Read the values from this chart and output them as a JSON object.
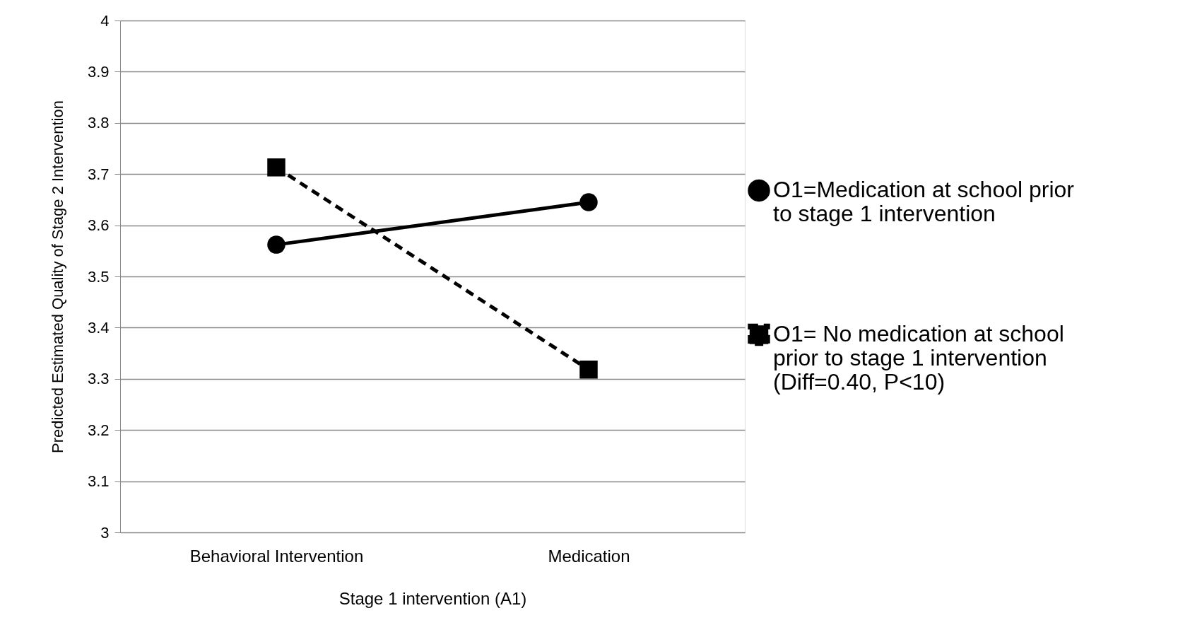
{
  "chart_data": {
    "type": "line",
    "xlabel": "Stage 1 intervention (A1)",
    "ylabel": "Predicted Estimated Quality of Stage 2 Intervention",
    "categories": [
      "Behavioral Intervention",
      "Medication"
    ],
    "series": [
      {
        "name": "O1=Medication at school prior to stage 1 intervention",
        "color": "#000000",
        "values": [
          3.562,
          3.645
        ],
        "marker": "circle",
        "line_style": "solid"
      },
      {
        "name": "O1= No medication at school prior to stage 1 intervention (Diff=0.40, P<10)",
        "color": "#000000",
        "values": [
          3.713,
          3.318
        ],
        "marker": "square",
        "line_style": "dashed"
      }
    ],
    "ylim": [
      3,
      4
    ],
    "yticks": [
      3,
      3.1,
      3.2,
      3.3,
      3.4,
      3.5,
      3.6,
      3.7,
      3.8,
      3.9,
      4
    ],
    "grid": "y",
    "legend": "right"
  }
}
